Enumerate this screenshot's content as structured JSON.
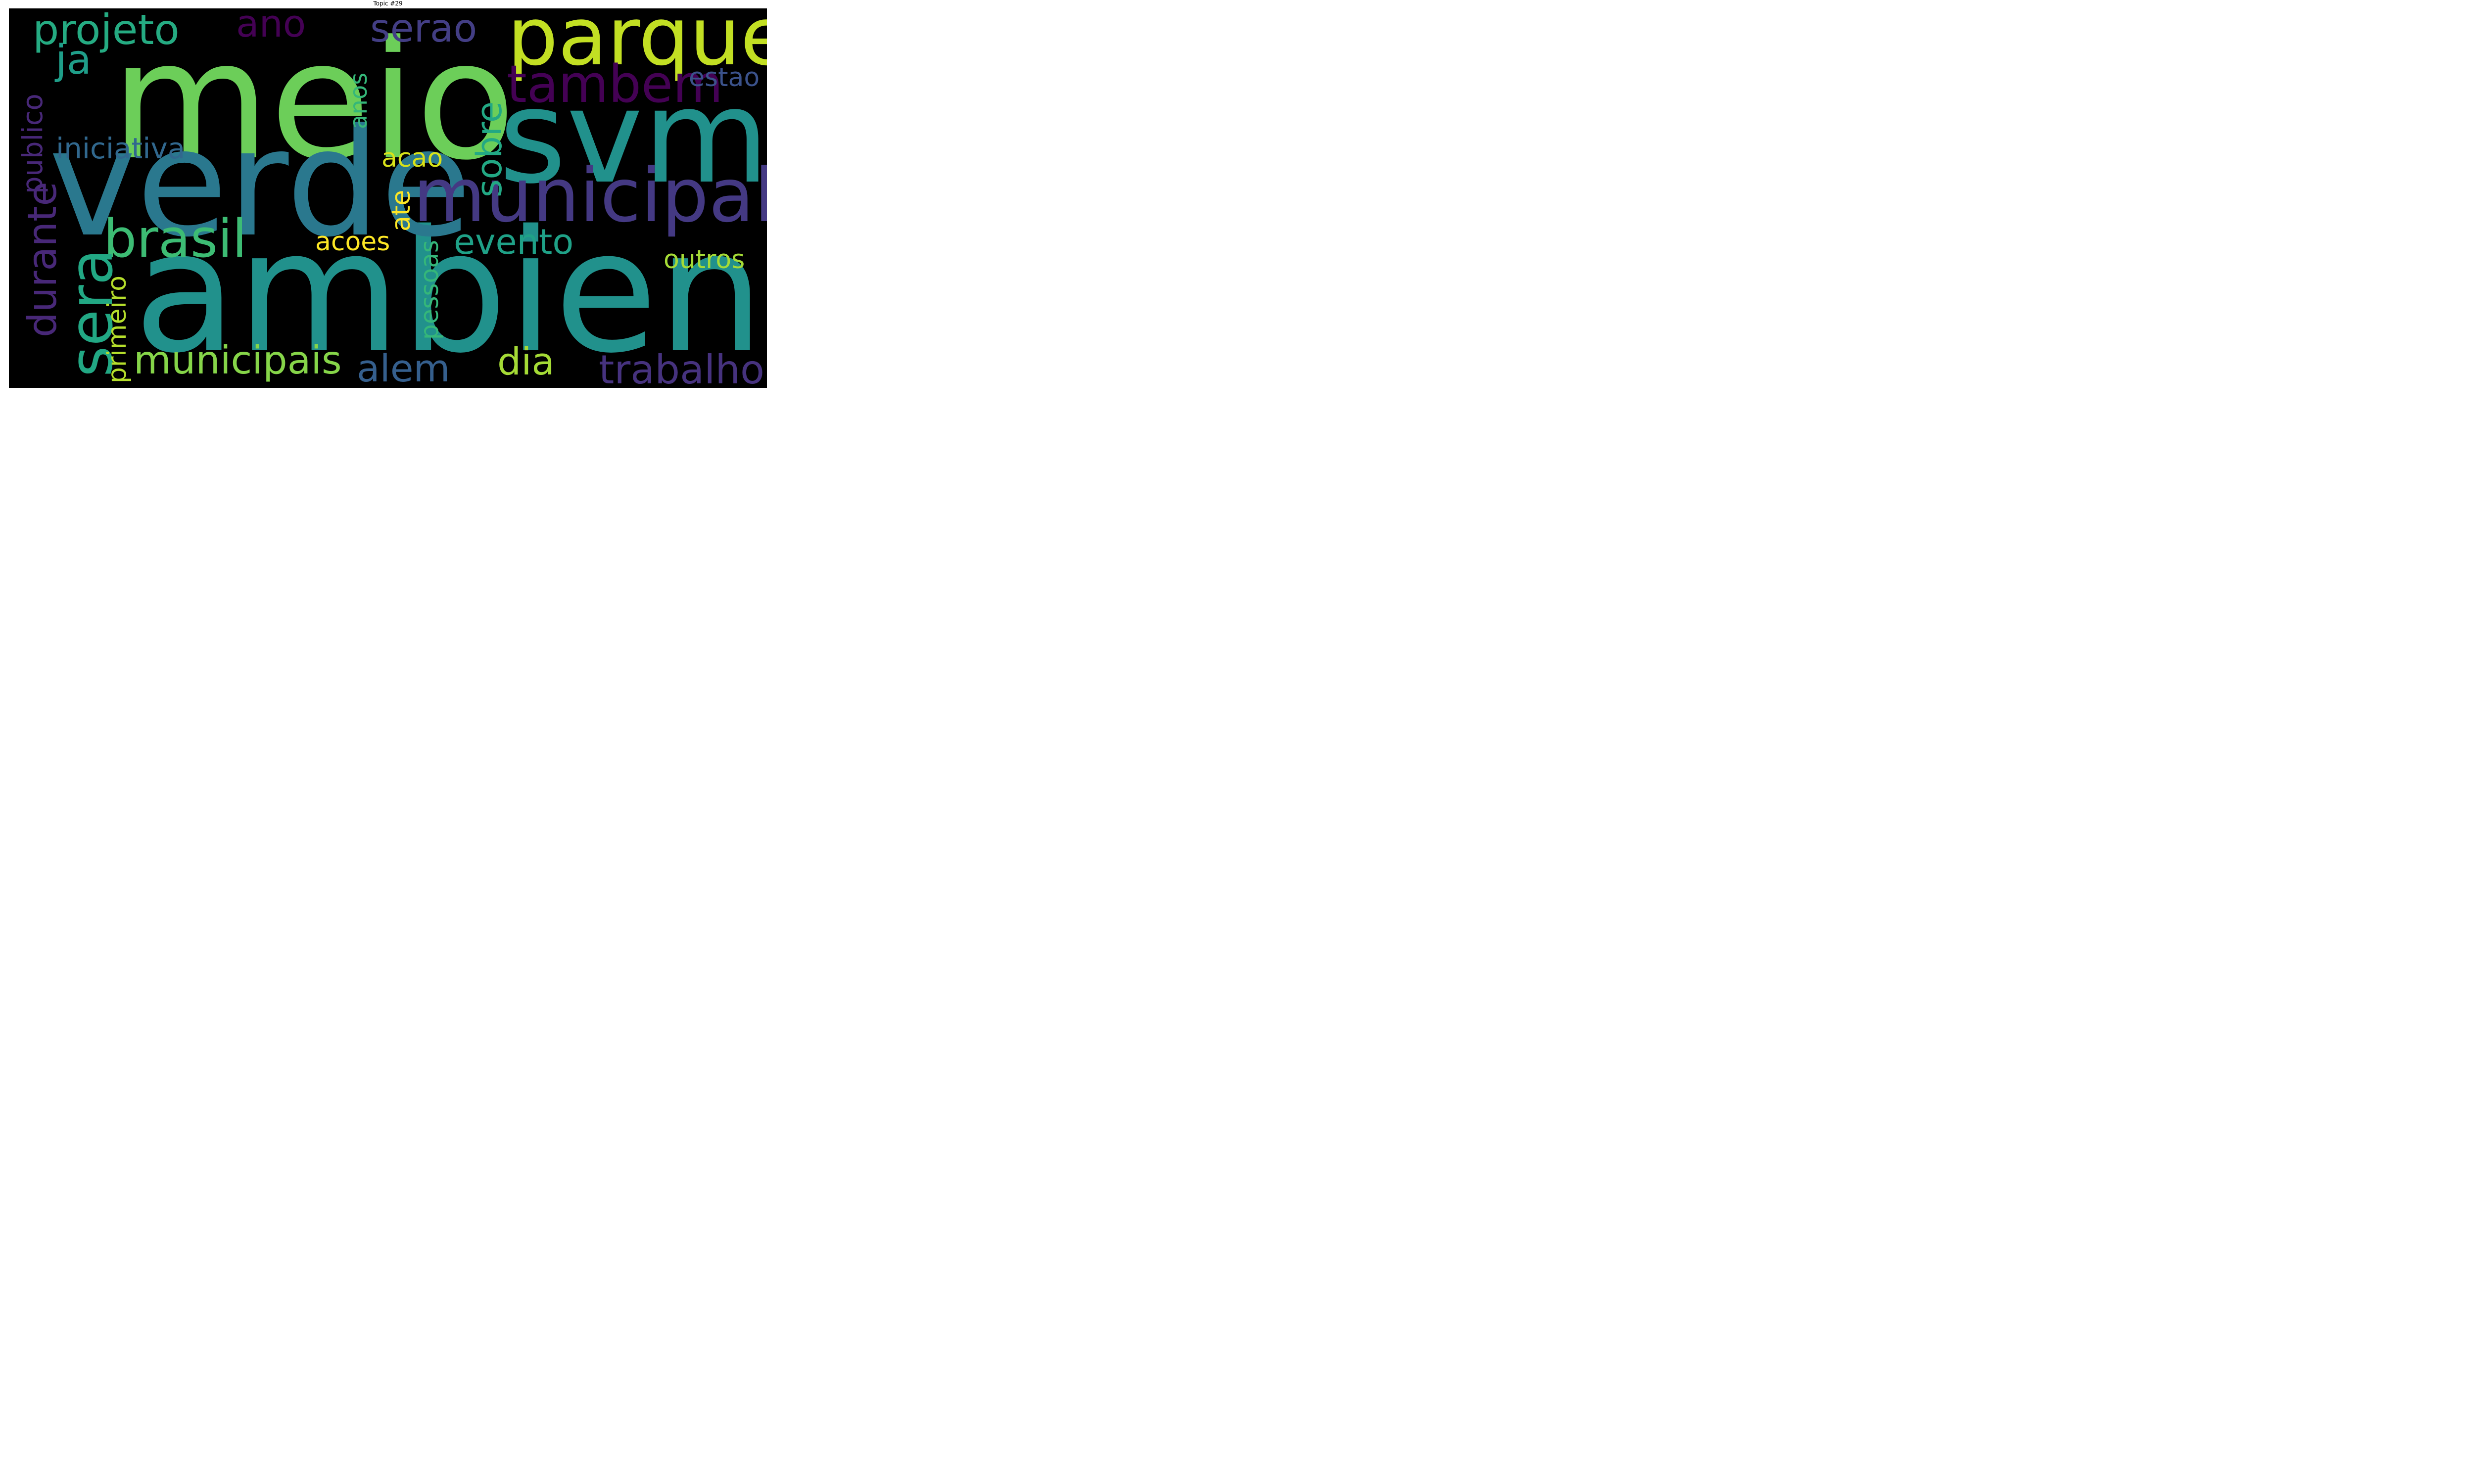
{
  "title": "Topic #29",
  "words": [
    {
      "id": "meio",
      "text": "meio",
      "color": "#6cce59"
    },
    {
      "id": "ambiente",
      "text": "ambiente",
      "color": "#21918c"
    },
    {
      "id": "verde",
      "text": "verde",
      "color": "#2a788e"
    },
    {
      "id": "svma",
      "text": "svma",
      "color": "#21918c"
    },
    {
      "id": "parques",
      "text": "parques",
      "color": "#c2df23"
    },
    {
      "id": "municipal",
      "text": "municipal",
      "color": "#443983"
    },
    {
      "id": "brasil",
      "text": "brasil",
      "color": "#3dbc74"
    },
    {
      "id": "sera",
      "text": "sera",
      "color": "#22a884"
    },
    {
      "id": "tambem",
      "text": "tambem",
      "color": "#440154"
    },
    {
      "id": "projeto",
      "text": "projeto",
      "color": "#25ab82"
    },
    {
      "id": "ano",
      "text": "ano",
      "color": "#440154"
    },
    {
      "id": "serao",
      "text": "serao",
      "color": "#433e85"
    },
    {
      "id": "ja",
      "text": "ja",
      "color": "#1f9e89"
    },
    {
      "id": "municipais",
      "text": "municipais",
      "color": "#86d549"
    },
    {
      "id": "durante",
      "text": "durante",
      "color": "#482878"
    },
    {
      "id": "sobre",
      "text": "sobre",
      "color": "#22a884"
    },
    {
      "id": "evento",
      "text": "evento",
      "color": "#1fa187"
    },
    {
      "id": "alem",
      "text": "alem",
      "color": "#355f8d"
    },
    {
      "id": "dia",
      "text": "dia",
      "color": "#a5db36"
    },
    {
      "id": "trabalho",
      "text": "trabalho",
      "color": "#46327e"
    },
    {
      "id": "iniciativa",
      "text": "iniciativa",
      "color": "#31688e"
    },
    {
      "id": "publico",
      "text": "publico",
      "color": "#482878"
    },
    {
      "id": "primeiro",
      "text": "primeiro",
      "color": "#b5de2b"
    },
    {
      "id": "pessoas",
      "text": "pessoas",
      "color": "#35b779"
    },
    {
      "id": "anos",
      "text": "anos",
      "color": "#35b779"
    },
    {
      "id": "estao",
      "text": "estao",
      "color": "#3b528b"
    },
    {
      "id": "acao",
      "text": "acao",
      "color": "#d8e219"
    },
    {
      "id": "ate",
      "text": "ate",
      "color": "#fde725"
    },
    {
      "id": "acoes",
      "text": "acoes",
      "color": "#fde725"
    },
    {
      "id": "outros",
      "text": "outros",
      "color": "#a5db36"
    }
  ]
}
